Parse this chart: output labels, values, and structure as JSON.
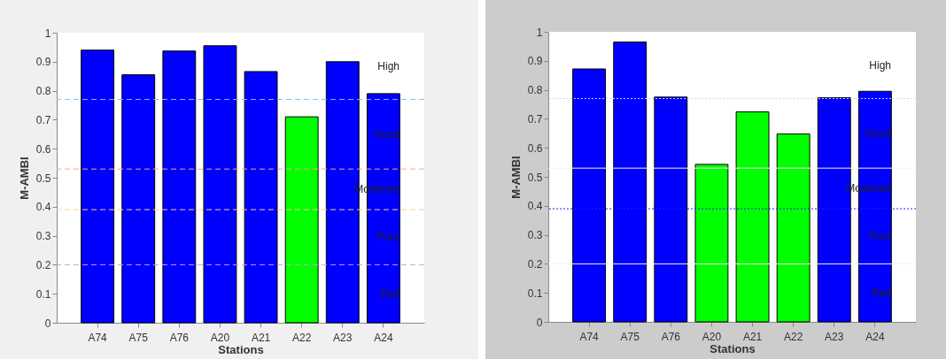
{
  "chart_data": [
    {
      "type": "bar",
      "xlabel": "Stations",
      "ylabel": "M-AMBI",
      "categories": [
        "A74",
        "A75",
        "A76",
        "A20",
        "A21",
        "A22",
        "A23",
        "A24"
      ],
      "values": [
        0.94,
        0.855,
        0.937,
        0.955,
        0.866,
        0.71,
        0.9,
        0.79
      ],
      "colors": [
        "#0000ff",
        "#0000ff",
        "#0000ff",
        "#0000ff",
        "#0000ff",
        "#00ff00",
        "#0000ff",
        "#0000ff"
      ],
      "ylim": [
        0,
        1
      ],
      "yticks": [
        0,
        0.1,
        0.2,
        0.3,
        0.4,
        0.5,
        0.6,
        0.7,
        0.8,
        0.9,
        1
      ],
      "ref_lines": [
        {
          "axis": "y",
          "value": 0.77,
          "color": "#7fbfe8",
          "line_style": "dashed"
        },
        {
          "axis": "y",
          "value": 0.53,
          "color": "#f0a88a",
          "line_style": "dashed"
        },
        {
          "axis": "y",
          "value": 0.39,
          "color": "#f2d38a",
          "line_style": "dashed"
        },
        {
          "axis": "y",
          "value": 0.2,
          "color": "#c9a0dc",
          "line_style": "dashed"
        }
      ],
      "annotations": [
        "High",
        "Good",
        "Moderate",
        "Poor",
        "Bad"
      ]
    },
    {
      "type": "bar",
      "xlabel": "Stations",
      "ylabel": "M-AMBI",
      "categories": [
        "A74",
        "A75",
        "A76",
        "A20",
        "A21",
        "A22",
        "A23",
        "A24"
      ],
      "values": [
        0.872,
        0.965,
        0.775,
        0.543,
        0.724,
        0.648,
        0.773,
        0.795
      ],
      "colors": [
        "#0000ff",
        "#0000ff",
        "#0000ff",
        "#00ff00",
        "#00ff00",
        "#00ff00",
        "#0000ff",
        "#0000ff"
      ],
      "ylim": [
        0,
        1
      ],
      "yticks": [
        0,
        0.1,
        0.2,
        0.3,
        0.4,
        0.5,
        0.6,
        0.7,
        0.8,
        0.9,
        1
      ],
      "ref_lines": [
        {
          "axis": "y",
          "value": 0.77,
          "color": "#d8d0f8",
          "line_style": "dotted"
        },
        {
          "axis": "y",
          "value": 0.53,
          "color": "#f4f4f4",
          "line_style": "solid"
        },
        {
          "axis": "y",
          "value": 0.39,
          "color": "#2020ff",
          "line_style": "dotted"
        },
        {
          "axis": "y",
          "value": 0.2,
          "color": "#f4f4f4",
          "line_style": "solid"
        }
      ],
      "annotations": [
        "High",
        "Good",
        "Moderate",
        "Poor",
        "Bad"
      ]
    }
  ]
}
